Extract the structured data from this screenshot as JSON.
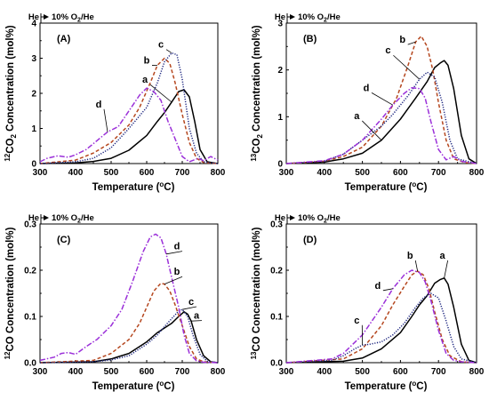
{
  "chart_data": [
    {
      "type": "line",
      "panel": "(A)",
      "gas_labels": [
        "He",
        "10% O",
        "2",
        "/He"
      ],
      "xlabel": "Temperature (",
      "xlabel_sup": "o",
      "xlabel_end": "C)",
      "ylabel_sup": "12",
      "ylabel_mid": "CO",
      "ylabel_sub": "2",
      "ylabel_end": " Concentration (mol%)",
      "xlim": [
        300,
        800
      ],
      "ylim": [
        0,
        4
      ],
      "xticks": [
        "300",
        "400",
        "500",
        "600",
        "700",
        "800"
      ],
      "yticks": [
        "0",
        "1",
        "2",
        "3",
        "4"
      ],
      "series": [
        {
          "name": "a",
          "color": "#000000",
          "dash": "solid",
          "x": [
            300,
            400,
            450,
            500,
            550,
            600,
            630,
            650,
            670,
            690,
            705,
            720,
            735,
            750,
            770,
            800
          ],
          "y": [
            0,
            0.02,
            0.06,
            0.15,
            0.38,
            0.8,
            1.2,
            1.45,
            1.75,
            2.05,
            2.1,
            1.9,
            1.2,
            0.4,
            0.05,
            0
          ]
        },
        {
          "name": "b",
          "color": "#b5471f",
          "dash": "dashed",
          "x": [
            300,
            400,
            450,
            500,
            550,
            580,
            610,
            630,
            650,
            665,
            680,
            700,
            720,
            740,
            760,
            800
          ],
          "y": [
            0,
            0.1,
            0.3,
            0.6,
            1.1,
            1.6,
            2.3,
            2.8,
            3.0,
            2.85,
            2.3,
            1.4,
            0.6,
            0.15,
            0.03,
            0
          ]
        },
        {
          "name": "c",
          "color": "#1a237e",
          "dash": "dotted",
          "x": [
            300,
            400,
            450,
            500,
            550,
            600,
            630,
            650,
            670,
            685,
            700,
            720,
            740,
            760,
            800
          ],
          "y": [
            0,
            0.05,
            0.15,
            0.45,
            1.0,
            1.6,
            2.3,
            2.9,
            3.15,
            3.1,
            2.4,
            1.0,
            0.3,
            0.05,
            0
          ]
        },
        {
          "name": "d",
          "color": "#9b30d9",
          "dash": "dashdot",
          "x": [
            300,
            320,
            350,
            380,
            400,
            430,
            460,
            490,
            520,
            550,
            580,
            600,
            620,
            640,
            660,
            680,
            700,
            720,
            745,
            760,
            780,
            800
          ],
          "y": [
            0.05,
            0.15,
            0.22,
            0.18,
            0.25,
            0.4,
            0.65,
            0.9,
            1.05,
            1.5,
            1.95,
            2.15,
            2.05,
            1.8,
            1.2,
            0.7,
            0.2,
            0.05,
            0.15,
            0.08,
            0.2,
            0.1
          ]
        }
      ],
      "annotations": [
        {
          "text": "a",
          "x": 600,
          "y": 2.3
        },
        {
          "text": "b",
          "x": 605,
          "y": 2.85
        },
        {
          "text": "c",
          "x": 645,
          "y": 3.3
        },
        {
          "text": "d",
          "x": 470,
          "y": 1.6
        }
      ]
    },
    {
      "type": "line",
      "panel": "(B)",
      "gas_labels": [
        "He",
        "10% O",
        "2",
        "/He"
      ],
      "xlabel": "Temperature (",
      "xlabel_sup": "o",
      "xlabel_end": "C)",
      "ylabel_sup": "13",
      "ylabel_mid": "CO",
      "ylabel_sub": "2",
      "ylabel_end": " Concentration (mol%)",
      "xlim": [
        300,
        800
      ],
      "ylim": [
        0,
        3
      ],
      "xticks": [
        "300",
        "400",
        "500",
        "600",
        "700",
        "800"
      ],
      "yticks": [
        "0",
        "1",
        "2",
        "3"
      ],
      "series": [
        {
          "name": "a",
          "color": "#000000",
          "dash": "solid",
          "x": [
            300,
            400,
            450,
            500,
            550,
            600,
            640,
            670,
            690,
            705,
            715,
            725,
            740,
            760,
            780,
            800
          ],
          "y": [
            0,
            0.03,
            0.1,
            0.22,
            0.5,
            0.95,
            1.4,
            1.75,
            2.05,
            2.15,
            2.2,
            2.1,
            1.6,
            0.6,
            0.1,
            0
          ]
        },
        {
          "name": "b",
          "color": "#b5471f",
          "dash": "dashed",
          "x": [
            300,
            400,
            450,
            500,
            550,
            590,
            620,
            640,
            655,
            670,
            685,
            700,
            720,
            740,
            770,
            800
          ],
          "y": [
            0,
            0.05,
            0.15,
            0.35,
            0.8,
            1.4,
            2.1,
            2.6,
            2.72,
            2.5,
            2.0,
            1.3,
            0.5,
            0.1,
            0.02,
            0
          ]
        },
        {
          "name": "c",
          "color": "#1a237e",
          "dash": "dotted",
          "x": [
            300,
            400,
            450,
            500,
            520,
            550,
            580,
            620,
            650,
            670,
            690,
            710,
            730,
            750,
            800
          ],
          "y": [
            0,
            0.05,
            0.2,
            0.5,
            0.62,
            0.8,
            1.05,
            1.45,
            1.8,
            1.95,
            1.85,
            1.3,
            0.5,
            0.1,
            0
          ]
        },
        {
          "name": "d",
          "color": "#9b30d9",
          "dash": "dashdot",
          "x": [
            300,
            400,
            450,
            500,
            550,
            580,
            610,
            630,
            650,
            665,
            680,
            700,
            720,
            740,
            760,
            800
          ],
          "y": [
            0,
            0.06,
            0.2,
            0.5,
            0.95,
            1.25,
            1.5,
            1.62,
            1.6,
            1.4,
            0.9,
            0.3,
            0.08,
            0.15,
            0.05,
            0
          ]
        }
      ],
      "annotations": [
        {
          "text": "a",
          "x": 490,
          "y": 0.95
        },
        {
          "text": "b",
          "x": 610,
          "y": 2.58
        },
        {
          "text": "c",
          "x": 572,
          "y": 2.35
        },
        {
          "text": "d",
          "x": 515,
          "y": 1.55
        }
      ]
    },
    {
      "type": "line",
      "panel": "(C)",
      "gas_labels": [
        "He",
        "10% O",
        "2",
        "/He"
      ],
      "xlabel": "Temperature (",
      "xlabel_sup": "o",
      "xlabel_end": "C)",
      "ylabel_sup": "12",
      "ylabel_mid": "CO Concentration (mol%)",
      "ylabel_sub": "",
      "ylabel_end": "",
      "xlim": [
        300,
        800
      ],
      "ylim": [
        0,
        0.3
      ],
      "xticks": [
        "300",
        "400",
        "500",
        "600",
        "700",
        "800"
      ],
      "yticks": [
        "0.0",
        "0.1",
        "0.2",
        "0.3"
      ],
      "series": [
        {
          "name": "a",
          "color": "#000000",
          "dash": "solid",
          "x": [
            300,
            450,
            500,
            550,
            600,
            630,
            650,
            670,
            690,
            705,
            715,
            725,
            740,
            760,
            780,
            800
          ],
          "y": [
            0,
            0.002,
            0.008,
            0.02,
            0.045,
            0.065,
            0.075,
            0.085,
            0.1,
            0.11,
            0.105,
            0.09,
            0.05,
            0.015,
            0.002,
            0
          ]
        },
        {
          "name": "b",
          "color": "#b5471f",
          "dash": "dashed",
          "x": [
            300,
            450,
            500,
            550,
            580,
            600,
            620,
            640,
            650,
            665,
            680,
            700,
            720,
            740,
            760,
            800
          ],
          "y": [
            0,
            0.005,
            0.02,
            0.05,
            0.085,
            0.12,
            0.155,
            0.172,
            0.17,
            0.155,
            0.125,
            0.08,
            0.035,
            0.008,
            0.002,
            0
          ]
        },
        {
          "name": "c",
          "color": "#1a237e",
          "dash": "dotted",
          "x": [
            300,
            450,
            500,
            550,
            600,
            630,
            650,
            670,
            690,
            700,
            715,
            730,
            750,
            770,
            800
          ],
          "y": [
            0,
            0.002,
            0.006,
            0.015,
            0.04,
            0.06,
            0.078,
            0.095,
            0.112,
            0.115,
            0.1,
            0.06,
            0.018,
            0.003,
            0
          ]
        },
        {
          "name": "d",
          "color": "#9b30d9",
          "dash": "dashdot",
          "x": [
            300,
            340,
            360,
            380,
            400,
            430,
            460,
            500,
            530,
            560,
            590,
            610,
            625,
            640,
            655,
            670,
            690,
            705,
            720,
            740,
            760,
            800
          ],
          "y": [
            0.005,
            0.012,
            0.02,
            0.022,
            0.018,
            0.035,
            0.05,
            0.08,
            0.115,
            0.175,
            0.24,
            0.272,
            0.278,
            0.27,
            0.235,
            0.185,
            0.12,
            0.06,
            0.02,
            0.004,
            0.001,
            0
          ]
        }
      ],
      "annotations": [
        {
          "text": "a",
          "x": 745,
          "y": 0.095
        },
        {
          "text": "b",
          "x": 690,
          "y": 0.19
        },
        {
          "text": "c",
          "x": 730,
          "y": 0.125
        },
        {
          "text": "d",
          "x": 690,
          "y": 0.245
        }
      ]
    },
    {
      "type": "line",
      "panel": "(D)",
      "gas_labels": [
        "He",
        "10% O",
        "2",
        "/He"
      ],
      "xlabel": "Temperature (",
      "xlabel_sup": "o",
      "xlabel_end": "C)",
      "ylabel_sup": "13",
      "ylabel_mid": "CO Concentration (mol%)",
      "ylabel_sub": "",
      "ylabel_end": "",
      "xlim": [
        300,
        800
      ],
      "ylim": [
        0,
        0.3
      ],
      "xticks": [
        "300",
        "400",
        "500",
        "600",
        "700",
        "800"
      ],
      "yticks": [
        "0.0",
        "0.1",
        "0.2",
        "0.3"
      ],
      "series": [
        {
          "name": "a",
          "color": "#000000",
          "dash": "solid",
          "x": [
            300,
            450,
            500,
            550,
            600,
            630,
            650,
            670,
            690,
            705,
            715,
            725,
            740,
            760,
            780,
            800
          ],
          "y": [
            0,
            0.003,
            0.01,
            0.03,
            0.065,
            0.1,
            0.125,
            0.145,
            0.172,
            0.18,
            0.183,
            0.17,
            0.12,
            0.04,
            0.005,
            0
          ]
        },
        {
          "name": "b",
          "color": "#b5471f",
          "dash": "dashed",
          "x": [
            300,
            450,
            500,
            550,
            580,
            610,
            630,
            645,
            660,
            675,
            690,
            710,
            730,
            760,
            800
          ],
          "y": [
            0,
            0.008,
            0.03,
            0.08,
            0.125,
            0.165,
            0.19,
            0.198,
            0.19,
            0.16,
            0.11,
            0.05,
            0.015,
            0.002,
            0
          ]
        },
        {
          "name": "c",
          "color": "#1a237e",
          "dash": "dotted",
          "x": [
            300,
            420,
            450,
            480,
            500,
            520,
            550,
            580,
            610,
            640,
            660,
            680,
            700,
            720,
            740,
            760,
            800
          ],
          "y": [
            0,
            0.005,
            0.015,
            0.03,
            0.038,
            0.04,
            0.045,
            0.06,
            0.085,
            0.12,
            0.14,
            0.15,
            0.14,
            0.09,
            0.035,
            0.008,
            0
          ]
        },
        {
          "name": "d",
          "color": "#9b30d9",
          "dash": "dashdot",
          "x": [
            300,
            420,
            450,
            500,
            550,
            580,
            610,
            630,
            650,
            665,
            680,
            700,
            720,
            740,
            760,
            800
          ],
          "y": [
            0,
            0.008,
            0.02,
            0.06,
            0.12,
            0.16,
            0.19,
            0.2,
            0.195,
            0.175,
            0.135,
            0.07,
            0.02,
            0.005,
            0.002,
            0
          ]
        }
      ],
      "annotations": [
        {
          "text": "a",
          "x": 715,
          "y": 0.225
        },
        {
          "text": "b",
          "x": 630,
          "y": 0.225
        },
        {
          "text": "c",
          "x": 490,
          "y": 0.085
        },
        {
          "text": "d",
          "x": 545,
          "y": 0.16
        }
      ]
    }
  ]
}
